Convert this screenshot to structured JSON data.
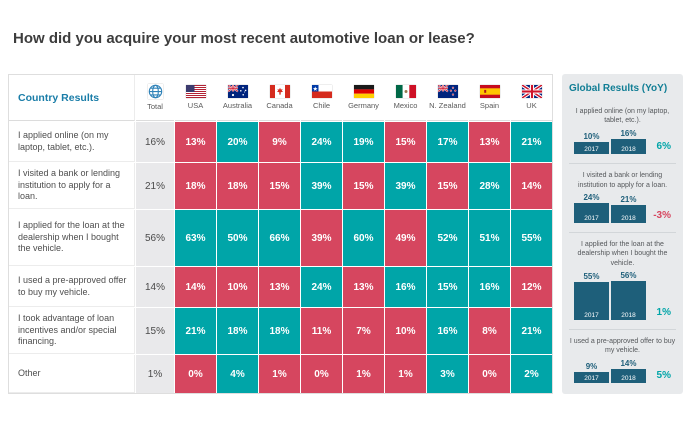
{
  "page_title": "How did you acquire your most recent automotive loan or lease?",
  "colors": {
    "teal_cell": "#00a5a8",
    "red_cell": "#d6465f",
    "total_cell_bg": "#e9e9eb",
    "accent_blue": "#1a7da8",
    "bar_navy": "#1e5f7a",
    "panel_bg": "#e8eaec",
    "delta_up": "#00a5a8",
    "delta_down": "#d6465f"
  },
  "table": {
    "corner_label": "Country Results",
    "total_column": {
      "label": "Total",
      "icon": "globe-icon"
    },
    "countries": [
      {
        "name": "USA",
        "flag": "usa"
      },
      {
        "name": "Australia",
        "flag": "australia"
      },
      {
        "name": "Canada",
        "flag": "canada"
      },
      {
        "name": "Chile",
        "flag": "chile"
      },
      {
        "name": "Germany",
        "flag": "germany"
      },
      {
        "name": "Mexico",
        "flag": "mexico"
      },
      {
        "name": "N. Zealand",
        "flag": "nzealand"
      },
      {
        "name": "Spain",
        "flag": "spain"
      },
      {
        "name": "UK",
        "flag": "uk"
      }
    ],
    "rows": [
      {
        "label": "I applied online (on my laptop, tablet, etc.).",
        "total": "16%",
        "cells": [
          {
            "value": "13%",
            "color": "red"
          },
          {
            "value": "20%",
            "color": "teal"
          },
          {
            "value": "9%",
            "color": "red"
          },
          {
            "value": "24%",
            "color": "teal"
          },
          {
            "value": "19%",
            "color": "teal"
          },
          {
            "value": "15%",
            "color": "red"
          },
          {
            "value": "17%",
            "color": "teal"
          },
          {
            "value": "13%",
            "color": "red"
          },
          {
            "value": "21%",
            "color": "teal"
          }
        ]
      },
      {
        "label": "I visited a bank or lending institution to apply for a loan.",
        "total": "21%",
        "cells": [
          {
            "value": "18%",
            "color": "red"
          },
          {
            "value": "18%",
            "color": "red"
          },
          {
            "value": "15%",
            "color": "red"
          },
          {
            "value": "39%",
            "color": "teal"
          },
          {
            "value": "15%",
            "color": "red"
          },
          {
            "value": "39%",
            "color": "teal"
          },
          {
            "value": "15%",
            "color": "red"
          },
          {
            "value": "28%",
            "color": "teal"
          },
          {
            "value": "14%",
            "color": "red"
          }
        ]
      },
      {
        "label": "I applied for the loan at the dealership when I bought the vehicle.",
        "total": "56%",
        "cells": [
          {
            "value": "63%",
            "color": "teal"
          },
          {
            "value": "50%",
            "color": "teal"
          },
          {
            "value": "66%",
            "color": "teal"
          },
          {
            "value": "39%",
            "color": "red"
          },
          {
            "value": "60%",
            "color": "teal"
          },
          {
            "value": "49%",
            "color": "red"
          },
          {
            "value": "52%",
            "color": "teal"
          },
          {
            "value": "51%",
            "color": "teal"
          },
          {
            "value": "55%",
            "color": "teal"
          }
        ]
      },
      {
        "label": "I used a pre-approved offer to buy my vehicle.",
        "total": "14%",
        "cells": [
          {
            "value": "14%",
            "color": "red"
          },
          {
            "value": "10%",
            "color": "red"
          },
          {
            "value": "13%",
            "color": "red"
          },
          {
            "value": "24%",
            "color": "teal"
          },
          {
            "value": "13%",
            "color": "red"
          },
          {
            "value": "16%",
            "color": "teal"
          },
          {
            "value": "15%",
            "color": "teal"
          },
          {
            "value": "16%",
            "color": "teal"
          },
          {
            "value": "12%",
            "color": "red"
          }
        ]
      },
      {
        "label": "I took advantage of loan incentives and/or special financing.",
        "total": "15%",
        "cells": [
          {
            "value": "21%",
            "color": "teal"
          },
          {
            "value": "18%",
            "color": "teal"
          },
          {
            "value": "18%",
            "color": "teal"
          },
          {
            "value": "11%",
            "color": "red"
          },
          {
            "value": "7%",
            "color": "red"
          },
          {
            "value": "10%",
            "color": "red"
          },
          {
            "value": "16%",
            "color": "teal"
          },
          {
            "value": "8%",
            "color": "red"
          },
          {
            "value": "21%",
            "color": "teal"
          }
        ]
      },
      {
        "label": "Other",
        "total": "1%",
        "cells": [
          {
            "value": "0%",
            "color": "red"
          },
          {
            "value": "4%",
            "color": "teal"
          },
          {
            "value": "1%",
            "color": "red"
          },
          {
            "value": "0%",
            "color": "red"
          },
          {
            "value": "1%",
            "color": "red"
          },
          {
            "value": "1%",
            "color": "red"
          },
          {
            "value": "3%",
            "color": "teal"
          },
          {
            "value": "0%",
            "color": "red"
          },
          {
            "value": "2%",
            "color": "teal"
          }
        ]
      }
    ]
  },
  "panel": {
    "title": "Global Results (YoY)",
    "years": [
      "2017",
      "2018"
    ],
    "sections": [
      {
        "caption": "I applied online (on my laptop, tablet, etc.).",
        "values": [
          10,
          16
        ],
        "labels": [
          "10%",
          "16%"
        ],
        "delta": "6%",
        "trend": "up"
      },
      {
        "caption": "I visited a bank or lending institution to apply for a loan.",
        "values": [
          24,
          21
        ],
        "labels": [
          "24%",
          "21%"
        ],
        "delta": "-3%",
        "trend": "down"
      },
      {
        "caption": "I applied for the loan at the dealership when I bought the vehicle.",
        "values": [
          55,
          56
        ],
        "labels": [
          "55%",
          "56%"
        ],
        "delta": "1%",
        "trend": "up"
      },
      {
        "caption": "I used a pre-approved offer to buy my vehicle.",
        "values": [
          9,
          14
        ],
        "labels": [
          "9%",
          "14%"
        ],
        "delta": "5%",
        "trend": "up"
      }
    ]
  },
  "chart_data": [
    {
      "type": "heatmap",
      "title": "How did you acquire your most recent automotive loan or lease? (Country Results)",
      "columns": [
        "Total",
        "USA",
        "Australia",
        "Canada",
        "Chile",
        "Germany",
        "Mexico",
        "N. Zealand",
        "Spain",
        "UK"
      ],
      "rows": [
        "I applied online (on my laptop, tablet, etc.).",
        "I visited a bank or lending institution to apply for a loan.",
        "I applied for the loan at the dealership when I bought the vehicle.",
        "I used a pre-approved offer to buy my vehicle.",
        "I took advantage of loan incentives and/or special financing.",
        "Other"
      ],
      "values": [
        [
          16,
          13,
          20,
          9,
          24,
          19,
          15,
          17,
          13,
          21
        ],
        [
          21,
          18,
          18,
          15,
          39,
          15,
          39,
          15,
          28,
          14
        ],
        [
          56,
          63,
          50,
          66,
          39,
          60,
          49,
          52,
          51,
          55
        ],
        [
          14,
          14,
          10,
          13,
          24,
          13,
          16,
          15,
          16,
          12
        ],
        [
          15,
          21,
          18,
          18,
          11,
          7,
          10,
          16,
          8,
          21
        ],
        [
          1,
          0,
          4,
          1,
          0,
          1,
          1,
          3,
          0,
          2
        ]
      ],
      "unit": "%",
      "cell_color_legend": {
        "teal": "#00a5a8",
        "red": "#d6465f",
        "total_column": "#e9e9eb"
      }
    },
    {
      "type": "bar",
      "title": "Global Results (YoY)",
      "categories": [
        "2017",
        "2018"
      ],
      "series": [
        {
          "name": "I applied online (on my laptop, tablet, etc.).",
          "values": [
            10,
            16
          ],
          "change": "6%"
        },
        {
          "name": "I visited a bank or lending institution to apply for a loan.",
          "values": [
            24,
            21
          ],
          "change": "-3%"
        },
        {
          "name": "I applied for the loan at the dealership when I bought the vehicle.",
          "values": [
            55,
            56
          ],
          "change": "1%"
        },
        {
          "name": "I used a pre-approved offer to buy my vehicle.",
          "values": [
            9,
            14
          ],
          "change": "5%"
        }
      ],
      "unit": "%",
      "bar_color": "#1e5f7a",
      "legend_position": "none",
      "grid": false
    }
  ]
}
